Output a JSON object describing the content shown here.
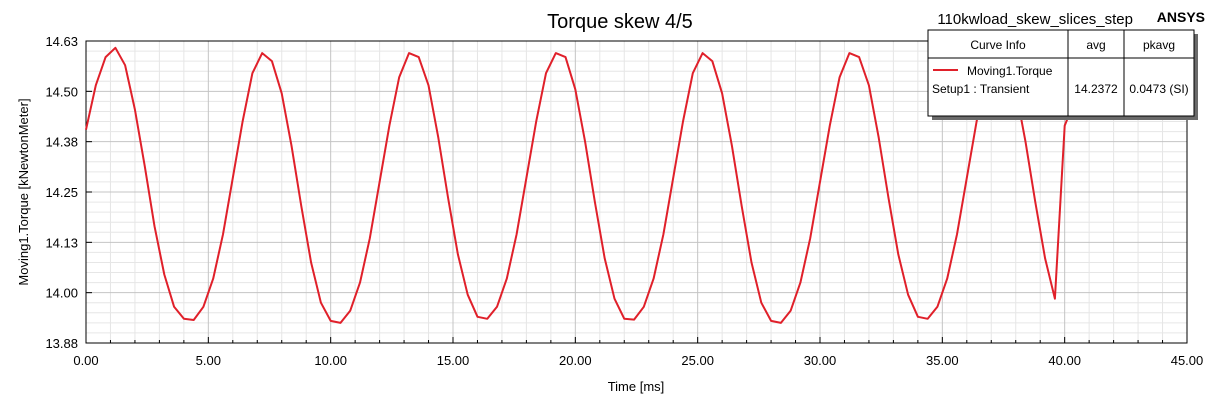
{
  "header": {
    "title": "Torque skew 4/5",
    "project": "110kwload_skew_slices_step",
    "brand": "ANSYS"
  },
  "legend": {
    "col_headers": [
      "Curve Info",
      "avg",
      "pkavg"
    ],
    "curve_name": "Moving1.Torque",
    "curve_setup": "Setup1 : Transient",
    "avg": "14.2372",
    "pkavg": "0.0473 (SI)",
    "line_color": "#e0202a"
  },
  "chart_data": {
    "type": "line",
    "title": "Torque skew 4/5",
    "xlabel": "Time [ms]",
    "ylabel": "Moving1.Torque [kNewtonMeter]",
    "xlim": [
      0,
      45
    ],
    "ylim": [
      13.88,
      14.63
    ],
    "x_ticks": [
      "0.00",
      "5.00",
      "10.00",
      "15.00",
      "20.00",
      "25.00",
      "30.00",
      "35.00",
      "40.00",
      "45.00"
    ],
    "y_ticks": [
      "14.63",
      "14.50",
      "14.38",
      "14.25",
      "14.13",
      "14.00",
      "13.88"
    ],
    "grid": true,
    "series": [
      {
        "name": "Moving1.Torque",
        "color": "#e0202a",
        "x": [
          0,
          0.4,
          0.8,
          1.2,
          1.6,
          2.0,
          2.4,
          2.8,
          3.2,
          3.6,
          4.0,
          4.4,
          4.8,
          5.2,
          5.6,
          6.0,
          6.4,
          6.8,
          7.2,
          7.6,
          8.0,
          8.4,
          8.8,
          9.2,
          9.6,
          10.0,
          10.4,
          10.8,
          11.2,
          11.6,
          12.0,
          12.4,
          12.8,
          13.2,
          13.6,
          14.0,
          14.4,
          14.8,
          15.2,
          15.6,
          16.0,
          16.4,
          16.8,
          17.2,
          17.6,
          18.0,
          18.4,
          18.8,
          19.2,
          19.6,
          20.0,
          20.4,
          20.8,
          21.2,
          21.6,
          22.0,
          22.4,
          22.8,
          23.2,
          23.6,
          24.0,
          24.4,
          24.8,
          25.2,
          25.6,
          26.0,
          26.4,
          26.8,
          27.2,
          27.6,
          28.0,
          28.4,
          28.8,
          29.2,
          29.6,
          30.0,
          30.4,
          30.8,
          31.2,
          31.6,
          32.0,
          32.4,
          32.8,
          33.2,
          33.6,
          34.0,
          34.4,
          34.8,
          35.2,
          35.6,
          36.0,
          36.4,
          36.8,
          37.2,
          37.6,
          38.0,
          38.4,
          38.8,
          39.2,
          39.6,
          40.0,
          40.4
        ],
        "values": [
          14.41,
          14.52,
          14.59,
          14.613,
          14.57,
          14.46,
          14.32,
          14.17,
          14.05,
          13.97,
          13.94,
          13.937,
          13.97,
          14.04,
          14.15,
          14.29,
          14.43,
          14.55,
          14.6,
          14.58,
          14.5,
          14.37,
          14.22,
          14.08,
          13.98,
          13.935,
          13.93,
          13.96,
          14.03,
          14.14,
          14.28,
          14.42,
          14.54,
          14.6,
          14.59,
          14.52,
          14.39,
          14.24,
          14.1,
          14.0,
          13.945,
          13.94,
          13.97,
          14.04,
          14.15,
          14.29,
          14.43,
          14.55,
          14.6,
          14.59,
          14.51,
          14.38,
          14.23,
          14.09,
          13.99,
          13.94,
          13.938,
          13.97,
          14.04,
          14.15,
          14.29,
          14.43,
          14.55,
          14.6,
          14.58,
          14.5,
          14.37,
          14.22,
          14.08,
          13.98,
          13.935,
          13.93,
          13.96,
          14.03,
          14.14,
          14.28,
          14.42,
          14.54,
          14.6,
          14.59,
          14.52,
          14.39,
          14.24,
          14.1,
          14.0,
          13.945,
          13.94,
          13.97,
          14.04,
          14.15,
          14.29,
          14.43,
          14.55,
          14.6,
          14.59,
          14.51,
          14.38,
          14.23,
          14.09,
          13.99,
          14.42,
          14.48
        ]
      }
    ]
  }
}
